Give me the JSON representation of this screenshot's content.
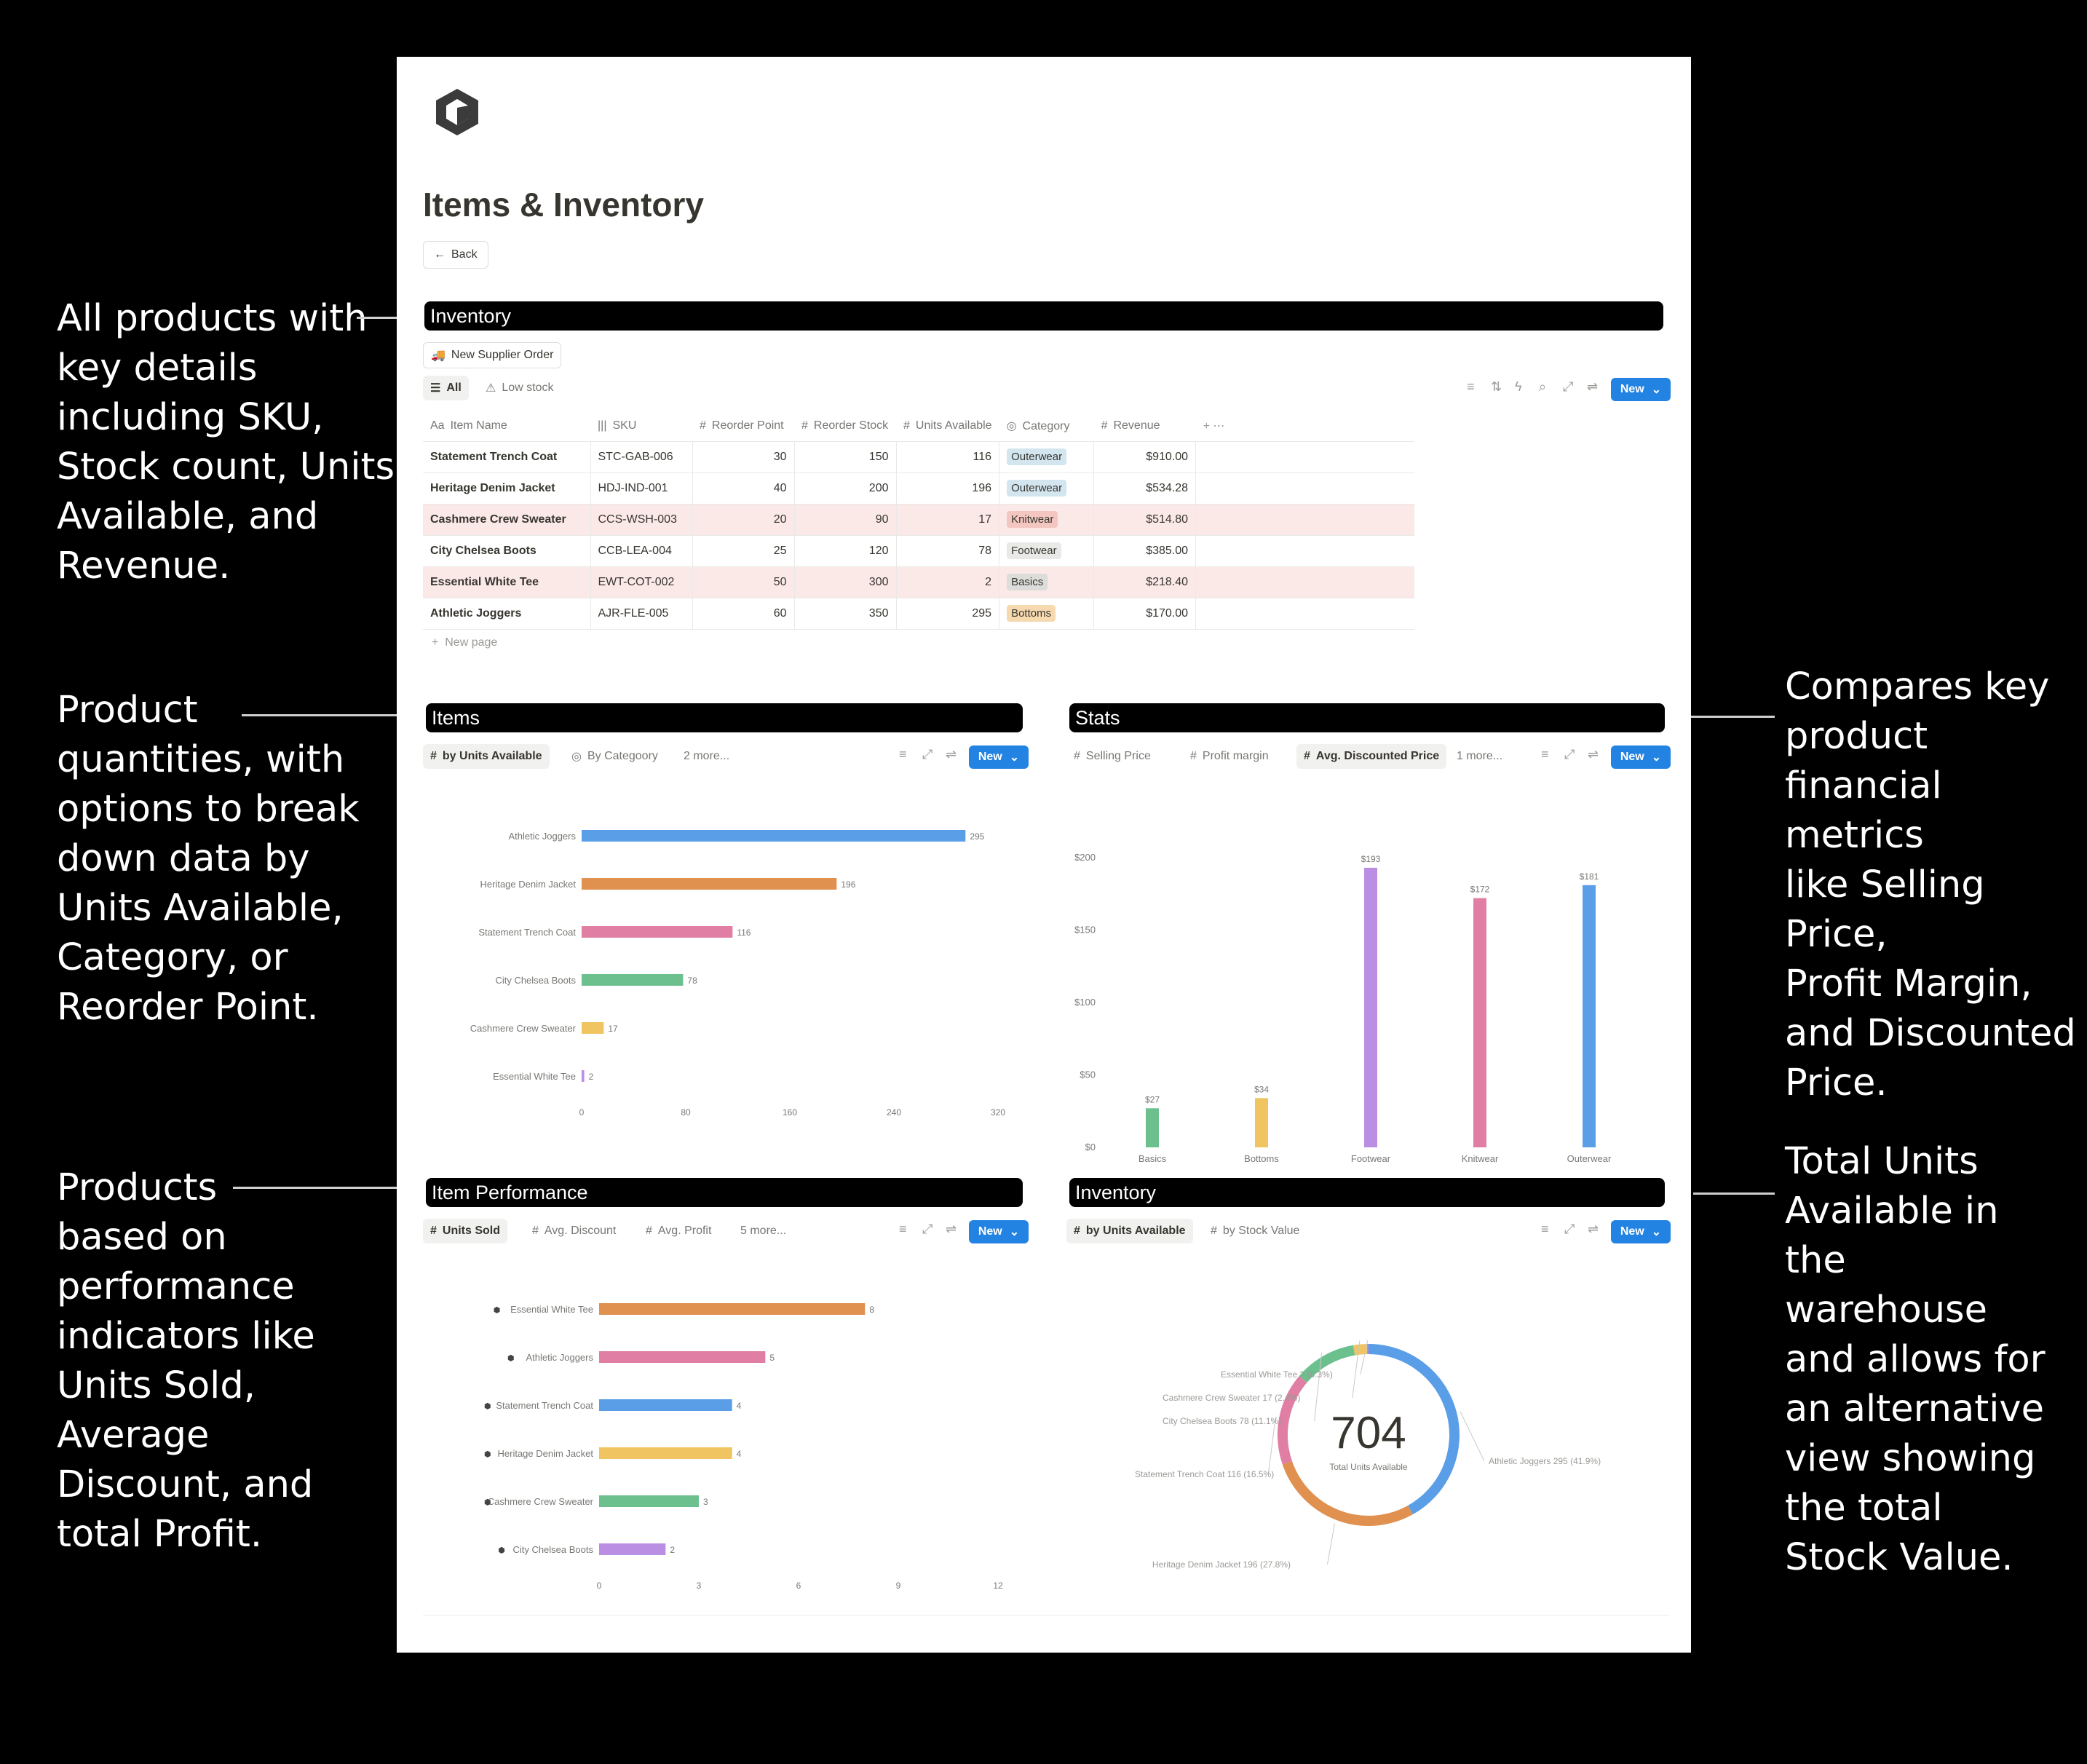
{
  "annotations": {
    "left": [
      {
        "lines": [
          "All products with",
          "key details",
          "including SKU,",
          "Stock count, Units",
          "Available, and",
          "Revenue."
        ]
      },
      {
        "lines": [
          "Product",
          "quantities, with",
          "options to break",
          "down data by",
          "Units Available,",
          "Category, or",
          "Reorder Point."
        ]
      },
      {
        "lines": [
          "Products",
          "based on",
          "performance",
          "indicators like",
          "Units Sold,",
          "Average",
          "Discount, and",
          "total Profit."
        ]
      }
    ],
    "right": [
      {
        "lines": [
          "Compares key",
          "product",
          "financial metrics",
          "like Selling Price,",
          "Profit Margin,",
          "and Discounted",
          "Price."
        ]
      },
      {
        "lines": [
          "Total Units",
          "Available in",
          "the",
          "warehouse",
          "and allows for",
          "an alternative",
          "view showing",
          "the total",
          "Stock Value."
        ]
      }
    ]
  },
  "page": {
    "title": "Items & Inventory",
    "back_label": "Back"
  },
  "inventory": {
    "header": "Inventory",
    "supplier_button": "New Supplier Order",
    "tabs": [
      "All",
      "Low stock"
    ],
    "new_label": "New",
    "columns": [
      "Item Name",
      "SKU",
      "Reorder Point",
      "Reorder Stock",
      "Units Available",
      "Category",
      "Revenue"
    ],
    "column_icons": [
      "Aa",
      "|||",
      "#",
      "#",
      "#",
      "◎",
      "#"
    ],
    "rows": [
      {
        "name": "Statement Trench Coat",
        "sku": "STC-GAB-006",
        "reorder_point": "30",
        "reorder_stock": "150",
        "units": "116",
        "category": "Outerwear",
        "revenue": "$910.00",
        "alert": false
      },
      {
        "name": "Heritage Denim Jacket",
        "sku": "HDJ-IND-001",
        "reorder_point": "40",
        "reorder_stock": "200",
        "units": "196",
        "category": "Outerwear",
        "revenue": "$534.28",
        "alert": false
      },
      {
        "name": "Cashmere Crew Sweater",
        "sku": "CCS-WSH-003",
        "reorder_point": "20",
        "reorder_stock": "90",
        "units": "17",
        "category": "Knitwear",
        "revenue": "$514.80",
        "alert": true
      },
      {
        "name": "City Chelsea Boots",
        "sku": "CCB-LEA-004",
        "reorder_point": "25",
        "reorder_stock": "120",
        "units": "78",
        "category": "Footwear",
        "revenue": "$385.00",
        "alert": false
      },
      {
        "name": "Essential White Tee",
        "sku": "EWT-COT-002",
        "reorder_point": "50",
        "reorder_stock": "300",
        "units": "2",
        "category": "Basics",
        "revenue": "$218.40",
        "alert": true
      },
      {
        "name": "Athletic Joggers",
        "sku": "AJR-FLE-005",
        "reorder_point": "60",
        "reorder_stock": "350",
        "units": "295",
        "category": "Bottoms",
        "revenue": "$170.00",
        "alert": false
      }
    ],
    "category_colors": {
      "Outerwear": "#d3e5ef",
      "Knitwear": "#f4c6c0",
      "Footwear": "#e9e9e7",
      "Basics": "#dcdcda",
      "Bottoms": "#f7d9b0"
    },
    "new_page_label": "New page"
  },
  "items_panel": {
    "header": "Items",
    "tabs": [
      "by Units Available",
      "By Categoory",
      "2 more..."
    ],
    "new_label": "New"
  },
  "stats_panel": {
    "header": "Stats",
    "tabs": [
      "Selling Price",
      "Profit margin",
      "Avg. Discounted Price",
      "1 more..."
    ],
    "new_label": "New"
  },
  "perf_panel": {
    "header": "Item Performance",
    "tabs": [
      "Units Sold",
      "Avg. Discount",
      "Avg. Profit",
      "5 more..."
    ],
    "new_label": "New"
  },
  "inv2_panel": {
    "header": "Inventory",
    "tabs": [
      "by Units Available",
      "by Stock Value"
    ],
    "new_label": "New"
  },
  "chart_data": [
    {
      "type": "bar",
      "orientation": "horizontal",
      "categories": [
        "Athletic Joggers",
        "Heritage Denim Jacket",
        "Statement Trench Coat",
        "City Chelsea Boots",
        "Cashmere Crew Sweater",
        "Essential White Tee"
      ],
      "values": [
        295,
        196,
        116,
        78,
        17,
        2
      ],
      "colors": [
        "#5b9ee8",
        "#e0904f",
        "#e07ea3",
        "#6cc08e",
        "#f0c460",
        "#b98ee3"
      ],
      "xticks": [
        "0",
        "80",
        "160",
        "240",
        "320"
      ],
      "xlim": [
        0,
        320
      ]
    },
    {
      "type": "bar",
      "orientation": "vertical",
      "categories": [
        "Basics",
        "Bottoms",
        "Footwear",
        "Knitwear",
        "Outerwear"
      ],
      "values": [
        27,
        34,
        193,
        172,
        181
      ],
      "labels": [
        "$27",
        "$34",
        "$193",
        "$172",
        "$181"
      ],
      "colors": [
        "#6cc08e",
        "#f0c460",
        "#b98ee3",
        "#e07ea3",
        "#5b9ee8"
      ],
      "yticks": [
        "$0",
        "$50",
        "$100",
        "$150",
        "$200"
      ],
      "ylim": [
        0,
        200
      ]
    },
    {
      "type": "bar",
      "orientation": "horizontal",
      "categories": [
        "Essential White Tee",
        "Athletic Joggers",
        "Statement Trench Coat",
        "Heritage Denim Jacket",
        "Cashmere Crew Sweater",
        "City Chelsea Boots"
      ],
      "values": [
        8,
        5,
        4,
        4,
        3,
        2
      ],
      "colors": [
        "#e0904f",
        "#e07ea3",
        "#5b9ee8",
        "#f0c460",
        "#6cc08e",
        "#b98ee3"
      ],
      "xticks": [
        "0",
        "3",
        "6",
        "9",
        "12"
      ],
      "xlim": [
        0,
        12
      ]
    },
    {
      "type": "pie",
      "donut": true,
      "center_value": "704",
      "center_label": "Total Units Available",
      "slices": [
        {
          "label": "Athletic Joggers",
          "value": 295,
          "text": "Athletic Joggers  295 (41.9%)",
          "color": "#5b9ee8"
        },
        {
          "label": "Heritage Denim Jacket",
          "value": 196,
          "text": "Heritage Denim Jacket  196 (27.8%)",
          "color": "#e0904f"
        },
        {
          "label": "Statement Trench Coat",
          "value": 116,
          "text": "Statement Trench Coat  116 (16.5%)",
          "color": "#e07ea3"
        },
        {
          "label": "City Chelsea Boots",
          "value": 78,
          "text": "City Chelsea Boots  78 (11.1%)",
          "color": "#6cc08e"
        },
        {
          "label": "Cashmere Crew Sweater",
          "value": 17,
          "text": "Cashmere Crew Sweater  17 (2.4%)",
          "color": "#f0c460"
        },
        {
          "label": "Essential White Tee",
          "value": 2,
          "text": "Essential White Tee  2 (0.3%)",
          "color": "#b98ee3"
        }
      ]
    }
  ]
}
